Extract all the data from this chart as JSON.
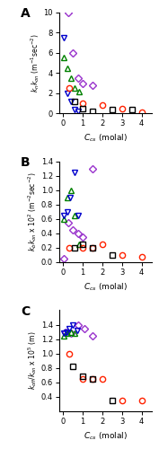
{
  "panel_A": {
    "title": "A",
    "ylabel": "$k_n k_{on}$ (m$^{-1}$sec$^{-2}$)",
    "xlabel": "$C_{cs}$ (molal)",
    "ylim": [
      0,
      10
    ],
    "yticks": [
      0,
      2,
      4,
      6,
      8,
      10
    ],
    "xlim": [
      -0.2,
      4.5
    ],
    "xticks": [
      0,
      1,
      2,
      3,
      4
    ],
    "series": {
      "purple_diamond": {
        "x": [
          0.25,
          0.5,
          0.75,
          1.0,
          1.5
        ],
        "y": [
          10.0,
          6.0,
          3.5,
          3.0,
          2.8
        ]
      },
      "green_triangle_up": {
        "x": [
          0.05,
          0.2,
          0.4,
          0.6,
          0.8
        ],
        "y": [
          5.5,
          4.5,
          3.5,
          2.5,
          2.2
        ]
      },
      "blue_triangle_down": {
        "x": [
          0.05,
          0.2,
          0.4,
          0.6,
          0.75
        ],
        "y": [
          7.5,
          2.0,
          1.2,
          0.4,
          0.2
        ]
      },
      "red_circle": {
        "x": [
          0.3,
          1.0,
          2.0,
          3.0,
          4.0
        ],
        "y": [
          2.5,
          1.0,
          0.8,
          0.5,
          0.1
        ]
      },
      "black_square": {
        "x": [
          0.6,
          1.0,
          1.5,
          2.5,
          3.5
        ],
        "y": [
          1.2,
          0.5,
          0.2,
          0.4,
          0.4
        ]
      }
    }
  },
  "panel_B": {
    "title": "B",
    "ylabel": "$k_b k_{on}$ x 10$^{2}$ (m$^{-2}$sec$^{-2}$)",
    "xlabel": "$C_{cs}$ (molal)",
    "ylim": [
      0,
      1.4
    ],
    "yticks": [
      0.0,
      0.2,
      0.4,
      0.6,
      0.8,
      1.0,
      1.2,
      1.4
    ],
    "xlim": [
      -0.2,
      4.5
    ],
    "xticks": [
      0,
      1,
      2,
      3,
      4
    ],
    "series": {
      "purple_diamond": {
        "x": [
          0.05,
          0.25,
          0.5,
          0.75,
          1.0,
          1.5
        ],
        "y": [
          0.05,
          0.55,
          0.45,
          0.4,
          0.35,
          1.3
        ]
      },
      "green_triangle_up": {
        "x": [
          0.05,
          0.2,
          0.4,
          0.6,
          0.8
        ],
        "y": [
          0.6,
          0.9,
          1.0,
          0.65,
          0.25
        ]
      },
      "blue_triangle_down": {
        "x": [
          0.05,
          0.2,
          0.35,
          0.6,
          0.75
        ],
        "y": [
          0.65,
          0.7,
          0.9,
          1.25,
          0.65
        ]
      },
      "red_circle": {
        "x": [
          0.3,
          1.0,
          1.5,
          2.0,
          3.0,
          4.0
        ],
        "y": [
          0.2,
          0.2,
          0.2,
          0.25,
          0.1,
          0.08
        ]
      },
      "black_square": {
        "x": [
          0.6,
          1.0,
          1.5,
          2.5
        ],
        "y": [
          0.2,
          0.25,
          0.2,
          0.1
        ]
      }
    }
  },
  "panel_C": {
    "title": "C",
    "ylabel": "$k_{off}/k_{on}$ x 10$^{5}$ (m)",
    "xlabel": "$C_{cs}$ (molal)",
    "ylim": [
      0.2,
      1.6
    ],
    "yticks": [
      0.4,
      0.6,
      0.8,
      1.0,
      1.2,
      1.4
    ],
    "xlim": [
      -0.2,
      4.5
    ],
    "xticks": [
      0,
      1,
      2,
      3,
      4
    ],
    "series": {
      "purple_diamond": {
        "x": [
          0.1,
          0.4,
          0.75,
          1.1,
          1.5
        ],
        "y": [
          1.3,
          1.28,
          1.4,
          1.35,
          1.25
        ]
      },
      "green_triangle_up": {
        "x": [
          0.05,
          0.2,
          0.4,
          0.6
        ],
        "y": [
          1.25,
          1.28,
          1.3,
          1.28
        ]
      },
      "blue_triangle_down": {
        "x": [
          0.05,
          0.15,
          0.3,
          0.5,
          0.7
        ],
        "y": [
          1.28,
          1.3,
          1.35,
          1.4,
          1.32
        ]
      },
      "red_circle": {
        "x": [
          0.3,
          1.0,
          1.5,
          2.0,
          3.0,
          4.0
        ],
        "y": [
          1.0,
          0.65,
          0.65,
          0.65,
          0.35,
          0.35
        ]
      },
      "black_square": {
        "x": [
          0.5,
          1.0,
          1.5,
          2.5
        ],
        "y": [
          0.82,
          0.68,
          0.65,
          0.35
        ]
      }
    }
  },
  "colors": {
    "purple_diamond": "#9933CC",
    "green_triangle_up": "#008000",
    "blue_triangle_down": "#0000CC",
    "red_circle": "#FF2200",
    "black_square": "#000000"
  },
  "markers": {
    "purple_diamond": "D",
    "green_triangle_up": "^",
    "blue_triangle_down": "v",
    "red_circle": "o",
    "black_square": "s"
  },
  "background_color": "#ffffff",
  "marker_size": 4.5
}
